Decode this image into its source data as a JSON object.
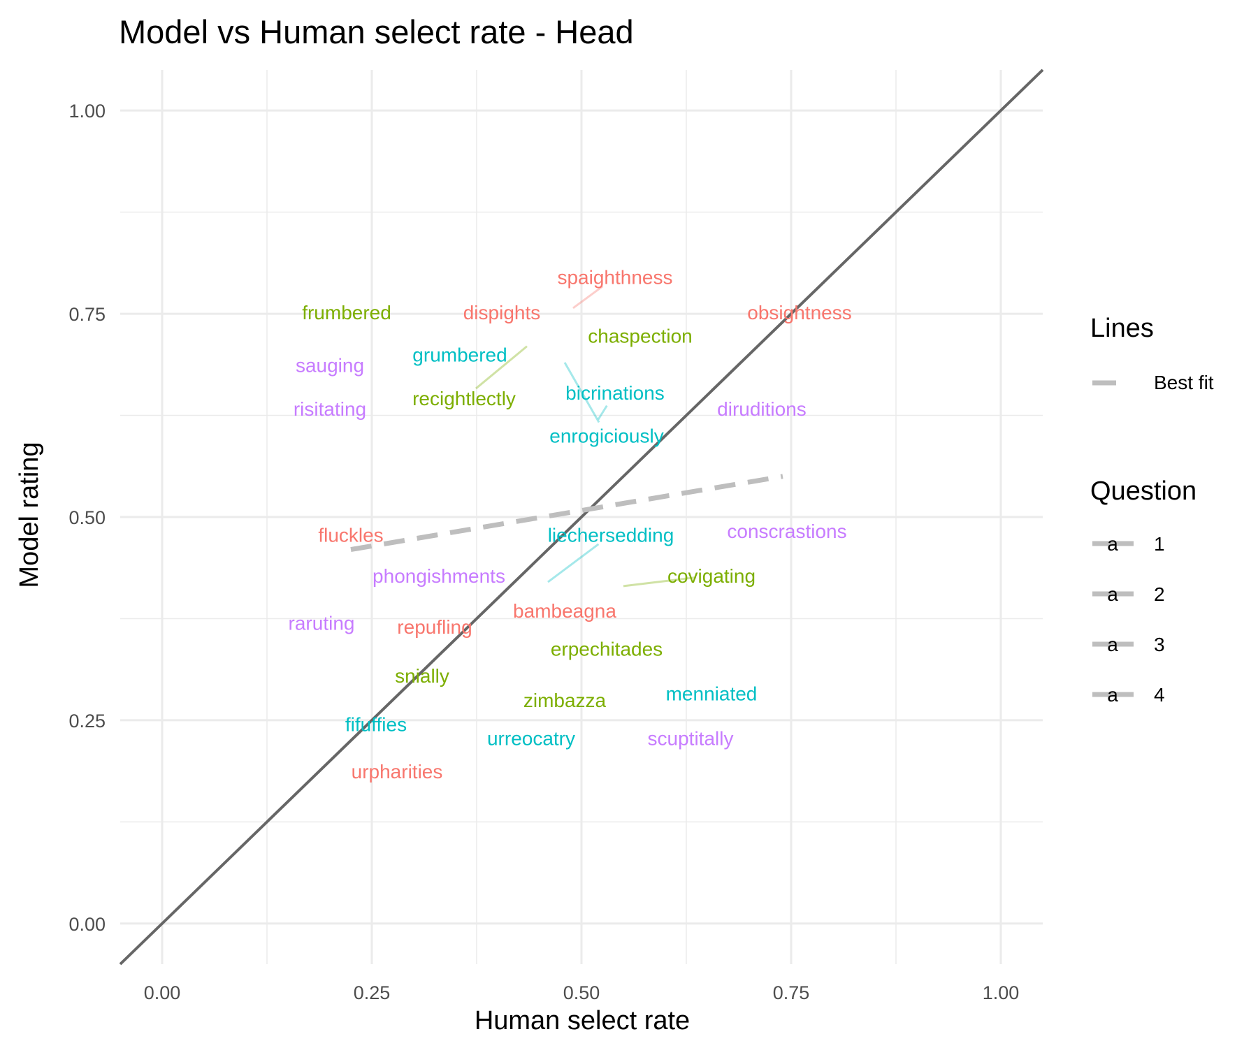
{
  "chart_data": {
    "type": "scatter",
    "title": "Model vs Human select rate - Head",
    "xlabel": "Human select rate",
    "ylabel": "Model rating",
    "xlim": [
      -0.05,
      1.05
    ],
    "ylim": [
      -0.05,
      1.05
    ],
    "x_ticks": [
      "0.00",
      "0.25",
      "0.50",
      "0.75",
      "1.00"
    ],
    "y_ticks": [
      "0.00",
      "0.25",
      "0.50",
      "0.75",
      "1.00"
    ],
    "grid": true,
    "reference_line": {
      "name": "identity",
      "slope": 1,
      "intercept": 0,
      "color": "#666666"
    },
    "best_fit": {
      "name": "Best fit",
      "x": [
        0.225,
        0.74
      ],
      "y": [
        0.46,
        0.55
      ],
      "color": "#bebebe"
    },
    "colors": {
      "1": "#F8766D",
      "2": "#7CAE00",
      "3": "#00BFC4",
      "4": "#C77CFF"
    },
    "legend": {
      "position": "right",
      "lines_title": "Lines",
      "lines_items": [
        {
          "label": "Best fit"
        }
      ],
      "question_title": "Question",
      "question_items": [
        {
          "key": "1",
          "label": "1",
          "glyph": "a"
        },
        {
          "key": "2",
          "label": "2",
          "glyph": "a"
        },
        {
          "key": "3",
          "label": "3",
          "glyph": "a"
        },
        {
          "key": "4",
          "label": "4",
          "glyph": "a"
        }
      ]
    },
    "points": [
      {
        "word": "spaighthness",
        "q": "1",
        "lx": 0.54,
        "ly": 0.795,
        "px": 0.49,
        "py": 0.757
      },
      {
        "word": "dispights",
        "q": "1",
        "lx": 0.405,
        "ly": 0.752
      },
      {
        "word": "obsightness",
        "q": "1",
        "lx": 0.76,
        "ly": 0.752
      },
      {
        "word": "fluckles",
        "q": "1",
        "lx": 0.225,
        "ly": 0.478
      },
      {
        "word": "bambeagna",
        "q": "1",
        "lx": 0.48,
        "ly": 0.385
      },
      {
        "word": "repufling",
        "q": "1",
        "lx": 0.325,
        "ly": 0.365
      },
      {
        "word": "urpharities",
        "q": "1",
        "lx": 0.28,
        "ly": 0.187
      },
      {
        "word": "frumbered",
        "q": "2",
        "lx": 0.22,
        "ly": 0.752
      },
      {
        "word": "chaspection",
        "q": "2",
        "lx": 0.57,
        "ly": 0.723
      },
      {
        "word": "recightlectly",
        "q": "2",
        "lx": 0.36,
        "ly": 0.646,
        "px": 0.435,
        "py": 0.71
      },
      {
        "word": "covigating",
        "q": "2",
        "lx": 0.655,
        "ly": 0.428,
        "px": 0.55,
        "py": 0.415
      },
      {
        "word": "erpechitades",
        "q": "2",
        "lx": 0.53,
        "ly": 0.338
      },
      {
        "word": "snially",
        "q": "2",
        "lx": 0.31,
        "ly": 0.305
      },
      {
        "word": "zimbazza",
        "q": "2",
        "lx": 0.48,
        "ly": 0.275
      },
      {
        "word": "grumbered",
        "q": "3",
        "lx": 0.355,
        "ly": 0.7
      },
      {
        "word": "bicrinations",
        "q": "3",
        "lx": 0.54,
        "ly": 0.653,
        "px": 0.52,
        "py": 0.62
      },
      {
        "word": "enrogiciously",
        "q": "3",
        "lx": 0.53,
        "ly": 0.6,
        "px": 0.48,
        "py": 0.69
      },
      {
        "word": "liechersedding",
        "q": "3",
        "lx": 0.535,
        "ly": 0.478,
        "px": 0.46,
        "py": 0.42
      },
      {
        "word": "menniated",
        "q": "3",
        "lx": 0.655,
        "ly": 0.283
      },
      {
        "word": "fifuffies",
        "q": "3",
        "lx": 0.255,
        "ly": 0.245
      },
      {
        "word": "urreocatry",
        "q": "3",
        "lx": 0.44,
        "ly": 0.228
      },
      {
        "word": "sauging",
        "q": "4",
        "lx": 0.2,
        "ly": 0.687
      },
      {
        "word": "risitating",
        "q": "4",
        "lx": 0.2,
        "ly": 0.633
      },
      {
        "word": "diruditions",
        "q": "4",
        "lx": 0.715,
        "ly": 0.633
      },
      {
        "word": "conscrastions",
        "q": "4",
        "lx": 0.745,
        "ly": 0.483
      },
      {
        "word": "phongishments",
        "q": "4",
        "lx": 0.33,
        "ly": 0.428
      },
      {
        "word": "raruting",
        "q": "4",
        "lx": 0.19,
        "ly": 0.37
      },
      {
        "word": "scuptitally",
        "q": "4",
        "lx": 0.63,
        "ly": 0.228
      }
    ]
  }
}
